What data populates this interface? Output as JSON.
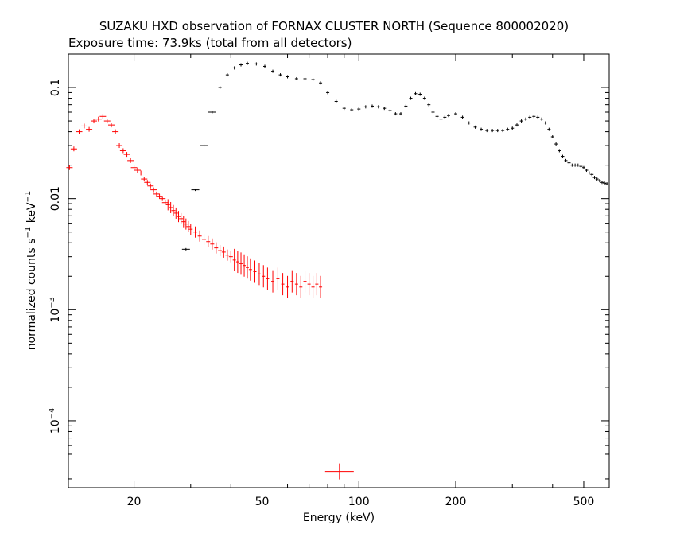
{
  "chart_data": {
    "type": "scatter",
    "title": "SUZAKU HXD observation of FORNAX CLUSTER NORTH (Sequence 800002020)",
    "subtitle": "Exposure time: 73.9ks (total from all detectors)",
    "xlabel": "Energy (keV)",
    "ylabel_parts": {
      "prefix": "normalized counts s",
      "sup1": "−1",
      "mid": " keV",
      "sup2": "−1"
    },
    "xscale": "log",
    "yscale": "log",
    "xlim": [
      12.5,
      600
    ],
    "ylim": [
      2.5e-05,
      0.2
    ],
    "xticks": [
      {
        "value": 20,
        "label": "20"
      },
      {
        "value": 50,
        "label": "50"
      },
      {
        "value": 100,
        "label": "100"
      },
      {
        "value": 200,
        "label": "200"
      },
      {
        "value": 500,
        "label": "500"
      }
    ],
    "yticks": [
      {
        "value": 0.1,
        "label": "0.1",
        "base": "",
        "exp": ""
      },
      {
        "value": 0.01,
        "label": "0.01",
        "base": "",
        "exp": ""
      },
      {
        "value": 0.001,
        "label": "",
        "base": "10",
        "exp": "−3"
      },
      {
        "value": 0.0001,
        "label": "",
        "base": "10",
        "exp": "−4"
      }
    ],
    "series": [
      {
        "color": "#ff0000",
        "points": [
          {
            "x": 12.6,
            "y": 0.019
          },
          {
            "x": 13.0,
            "y": 0.028
          },
          {
            "x": 13.5,
            "y": 0.04
          },
          {
            "x": 14.0,
            "y": 0.045
          },
          {
            "x": 14.5,
            "y": 0.042
          },
          {
            "x": 15.0,
            "y": 0.05
          },
          {
            "x": 15.5,
            "y": 0.052
          },
          {
            "x": 16.0,
            "y": 0.055
          },
          {
            "x": 16.5,
            "y": 0.05
          },
          {
            "x": 17.0,
            "y": 0.046
          },
          {
            "x": 17.5,
            "y": 0.04
          },
          {
            "x": 18.0,
            "y": 0.03
          },
          {
            "x": 18.5,
            "y": 0.027
          },
          {
            "x": 19.0,
            "y": 0.025
          },
          {
            "x": 19.5,
            "y": 0.022
          },
          {
            "x": 20.0,
            "y": 0.019
          },
          {
            "x": 20.5,
            "y": 0.018
          },
          {
            "x": 21.0,
            "y": 0.017
          },
          {
            "x": 21.5,
            "y": 0.015
          },
          {
            "x": 22.0,
            "y": 0.014
          },
          {
            "x": 22.5,
            "y": 0.013
          },
          {
            "x": 23.0,
            "y": 0.012
          },
          {
            "x": 23.5,
            "y": 0.011
          },
          {
            "x": 24.0,
            "y": 0.0105
          },
          {
            "x": 24.5,
            "y": 0.01
          },
          {
            "x": 25.0,
            "y": 0.0092
          },
          {
            "x": 25.5,
            "y": 0.0088
          },
          {
            "x": 26.0,
            "y": 0.0083
          },
          {
            "x": 26.5,
            "y": 0.0078
          },
          {
            "x": 27.0,
            "y": 0.0074
          },
          {
            "x": 27.5,
            "y": 0.0069
          },
          {
            "x": 28.0,
            "y": 0.0066
          },
          {
            "x": 28.5,
            "y": 0.0062
          },
          {
            "x": 29.0,
            "y": 0.0059
          },
          {
            "x": 29.5,
            "y": 0.0056
          },
          {
            "x": 30.0,
            "y": 0.0053
          },
          {
            "x": 31.0,
            "y": 0.005
          },
          {
            "x": 32.0,
            "y": 0.0046
          },
          {
            "x": 33.0,
            "y": 0.0043
          },
          {
            "x": 34.0,
            "y": 0.0041
          },
          {
            "x": 35.0,
            "y": 0.0039
          },
          {
            "x": 36.0,
            "y": 0.0036
          },
          {
            "x": 37.0,
            "y": 0.0034
          },
          {
            "x": 38.0,
            "y": 0.0033
          },
          {
            "x": 39.0,
            "y": 0.0031
          },
          {
            "x": 40.0,
            "y": 0.003
          },
          {
            "x": 41.0,
            "y": 0.0028
          },
          {
            "x": 42.0,
            "y": 0.0027
          },
          {
            "x": 43.0,
            "y": 0.0026
          },
          {
            "x": 44.0,
            "y": 0.0025
          },
          {
            "x": 45.0,
            "y": 0.0024
          },
          {
            "x": 46.0,
            "y": 0.0023
          },
          {
            "x": 47.5,
            "y": 0.0022
          },
          {
            "x": 49.0,
            "y": 0.0021
          },
          {
            "x": 50.5,
            "y": 0.002
          },
          {
            "x": 52.0,
            "y": 0.0019
          },
          {
            "x": 54.0,
            "y": 0.0018
          },
          {
            "x": 56.0,
            "y": 0.0019
          },
          {
            "x": 58.0,
            "y": 0.0017
          },
          {
            "x": 60.0,
            "y": 0.0016
          },
          {
            "x": 62.0,
            "y": 0.0018
          },
          {
            "x": 64.0,
            "y": 0.0017
          },
          {
            "x": 66.0,
            "y": 0.0016
          },
          {
            "x": 68.0,
            "y": 0.0018
          },
          {
            "x": 70.0,
            "y": 0.0017
          },
          {
            "x": 72.0,
            "y": 0.0016
          },
          {
            "x": 74.0,
            "y": 0.0017
          },
          {
            "x": 76.0,
            "y": 0.0016
          },
          {
            "x": 87.0,
            "y": 3.5e-05
          }
        ]
      },
      {
        "color": "#000000",
        "points": [
          {
            "x": 29.0,
            "y": 0.0035
          },
          {
            "x": 31.0,
            "y": 0.012
          },
          {
            "x": 33.0,
            "y": 0.03
          },
          {
            "x": 35.0,
            "y": 0.06
          },
          {
            "x": 37.0,
            "y": 0.1
          },
          {
            "x": 39.0,
            "y": 0.13
          },
          {
            "x": 41.0,
            "y": 0.15
          },
          {
            "x": 43.0,
            "y": 0.16
          },
          {
            "x": 45.0,
            "y": 0.165
          },
          {
            "x": 48.0,
            "y": 0.163
          },
          {
            "x": 51.0,
            "y": 0.155
          },
          {
            "x": 54.0,
            "y": 0.14
          },
          {
            "x": 57.0,
            "y": 0.13
          },
          {
            "x": 60.0,
            "y": 0.125
          },
          {
            "x": 64.0,
            "y": 0.12
          },
          {
            "x": 68.0,
            "y": 0.12
          },
          {
            "x": 72.0,
            "y": 0.118
          },
          {
            "x": 76.0,
            "y": 0.11
          },
          {
            "x": 80.0,
            "y": 0.09
          },
          {
            "x": 85.0,
            "y": 0.075
          },
          {
            "x": 90.0,
            "y": 0.065
          },
          {
            "x": 95.0,
            "y": 0.063
          },
          {
            "x": 100.0,
            "y": 0.064
          },
          {
            "x": 105.0,
            "y": 0.067
          },
          {
            "x": 110.0,
            "y": 0.068
          },
          {
            "x": 115.0,
            "y": 0.067
          },
          {
            "x": 120.0,
            "y": 0.065
          },
          {
            "x": 125.0,
            "y": 0.062
          },
          {
            "x": 130.0,
            "y": 0.058
          },
          {
            "x": 135.0,
            "y": 0.058
          },
          {
            "x": 140.0,
            "y": 0.068
          },
          {
            "x": 145.0,
            "y": 0.08
          },
          {
            "x": 150.0,
            "y": 0.088
          },
          {
            "x": 155.0,
            "y": 0.087
          },
          {
            "x": 160.0,
            "y": 0.08
          },
          {
            "x": 165.0,
            "y": 0.07
          },
          {
            "x": 170.0,
            "y": 0.06
          },
          {
            "x": 175.0,
            "y": 0.055
          },
          {
            "x": 180.0,
            "y": 0.052
          },
          {
            "x": 185.0,
            "y": 0.054
          },
          {
            "x": 190.0,
            "y": 0.056
          },
          {
            "x": 200.0,
            "y": 0.058
          },
          {
            "x": 210.0,
            "y": 0.054
          },
          {
            "x": 220.0,
            "y": 0.048
          },
          {
            "x": 230.0,
            "y": 0.044
          },
          {
            "x": 240.0,
            "y": 0.042
          },
          {
            "x": 250.0,
            "y": 0.041
          },
          {
            "x": 260.0,
            "y": 0.041
          },
          {
            "x": 270.0,
            "y": 0.041
          },
          {
            "x": 280.0,
            "y": 0.041
          },
          {
            "x": 290.0,
            "y": 0.042
          },
          {
            "x": 300.0,
            "y": 0.043
          },
          {
            "x": 310.0,
            "y": 0.046
          },
          {
            "x": 320.0,
            "y": 0.05
          },
          {
            "x": 330.0,
            "y": 0.052
          },
          {
            "x": 340.0,
            "y": 0.054
          },
          {
            "x": 350.0,
            "y": 0.055
          },
          {
            "x": 360.0,
            "y": 0.054
          },
          {
            "x": 370.0,
            "y": 0.052
          },
          {
            "x": 380.0,
            "y": 0.048
          },
          {
            "x": 390.0,
            "y": 0.042
          },
          {
            "x": 400.0,
            "y": 0.036
          },
          {
            "x": 410.0,
            "y": 0.031
          },
          {
            "x": 420.0,
            "y": 0.027
          },
          {
            "x": 430.0,
            "y": 0.024
          },
          {
            "x": 440.0,
            "y": 0.022
          },
          {
            "x": 450.0,
            "y": 0.021
          },
          {
            "x": 460.0,
            "y": 0.02
          },
          {
            "x": 470.0,
            "y": 0.02
          },
          {
            "x": 480.0,
            "y": 0.02
          },
          {
            "x": 490.0,
            "y": 0.0195
          },
          {
            "x": 500.0,
            "y": 0.019
          },
          {
            "x": 510.0,
            "y": 0.018
          },
          {
            "x": 520.0,
            "y": 0.017
          },
          {
            "x": 530.0,
            "y": 0.0165
          },
          {
            "x": 540.0,
            "y": 0.0155
          },
          {
            "x": 550.0,
            "y": 0.015
          },
          {
            "x": 560.0,
            "y": 0.0145
          },
          {
            "x": 570.0,
            "y": 0.014
          },
          {
            "x": 580.0,
            "y": 0.0138
          },
          {
            "x": 590.0,
            "y": 0.0136
          }
        ]
      }
    ]
  }
}
